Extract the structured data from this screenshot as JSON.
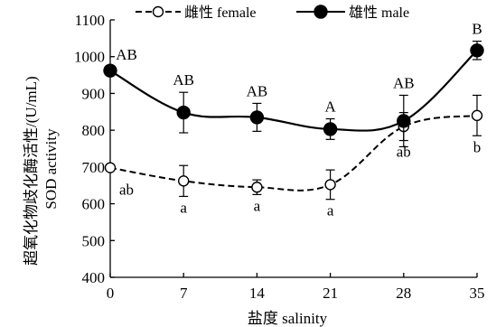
{
  "chart_data": {
    "type": "line",
    "ylabel": "超氧化物歧化酶活性/(U/mL)  SOD activity",
    "ylabel_cn": "超氧化物歧化酶活性/(U/mL)",
    "ylabel_en": "SOD activity",
    "xlabel": "盐度 salinity",
    "x": [
      0,
      7,
      14,
      21,
      28,
      35
    ],
    "x_tick_labels": [
      "0",
      "7",
      "14",
      "21",
      "28",
      "35"
    ],
    "ylim": [
      400,
      1100
    ],
    "y_ticks": [
      400,
      500,
      600,
      700,
      800,
      900,
      1000,
      1100
    ],
    "y_tick_labels": [
      "400",
      "500",
      "600",
      "700",
      "800",
      "900",
      "1000",
      "1100"
    ],
    "legend_position": "top",
    "series": [
      {
        "name": "雌性 female",
        "style": "dashed",
        "marker": "open-circle",
        "values": [
          698,
          662,
          645,
          652,
          810,
          840
        ],
        "error": [
          0,
          42,
          20,
          40,
          38,
          55
        ],
        "annotations": [
          "ab",
          "a",
          "a",
          "a",
          "ab",
          "b"
        ]
      },
      {
        "name": "雄性 male",
        "style": "solid",
        "marker": "filled-circle",
        "values": [
          962,
          848,
          835,
          803,
          825,
          1017
        ],
        "error": [
          0,
          55,
          38,
          28,
          70,
          25
        ],
        "annotations": [
          "AB",
          "AB",
          "AB",
          "A",
          "AB",
          "B"
        ]
      }
    ]
  }
}
